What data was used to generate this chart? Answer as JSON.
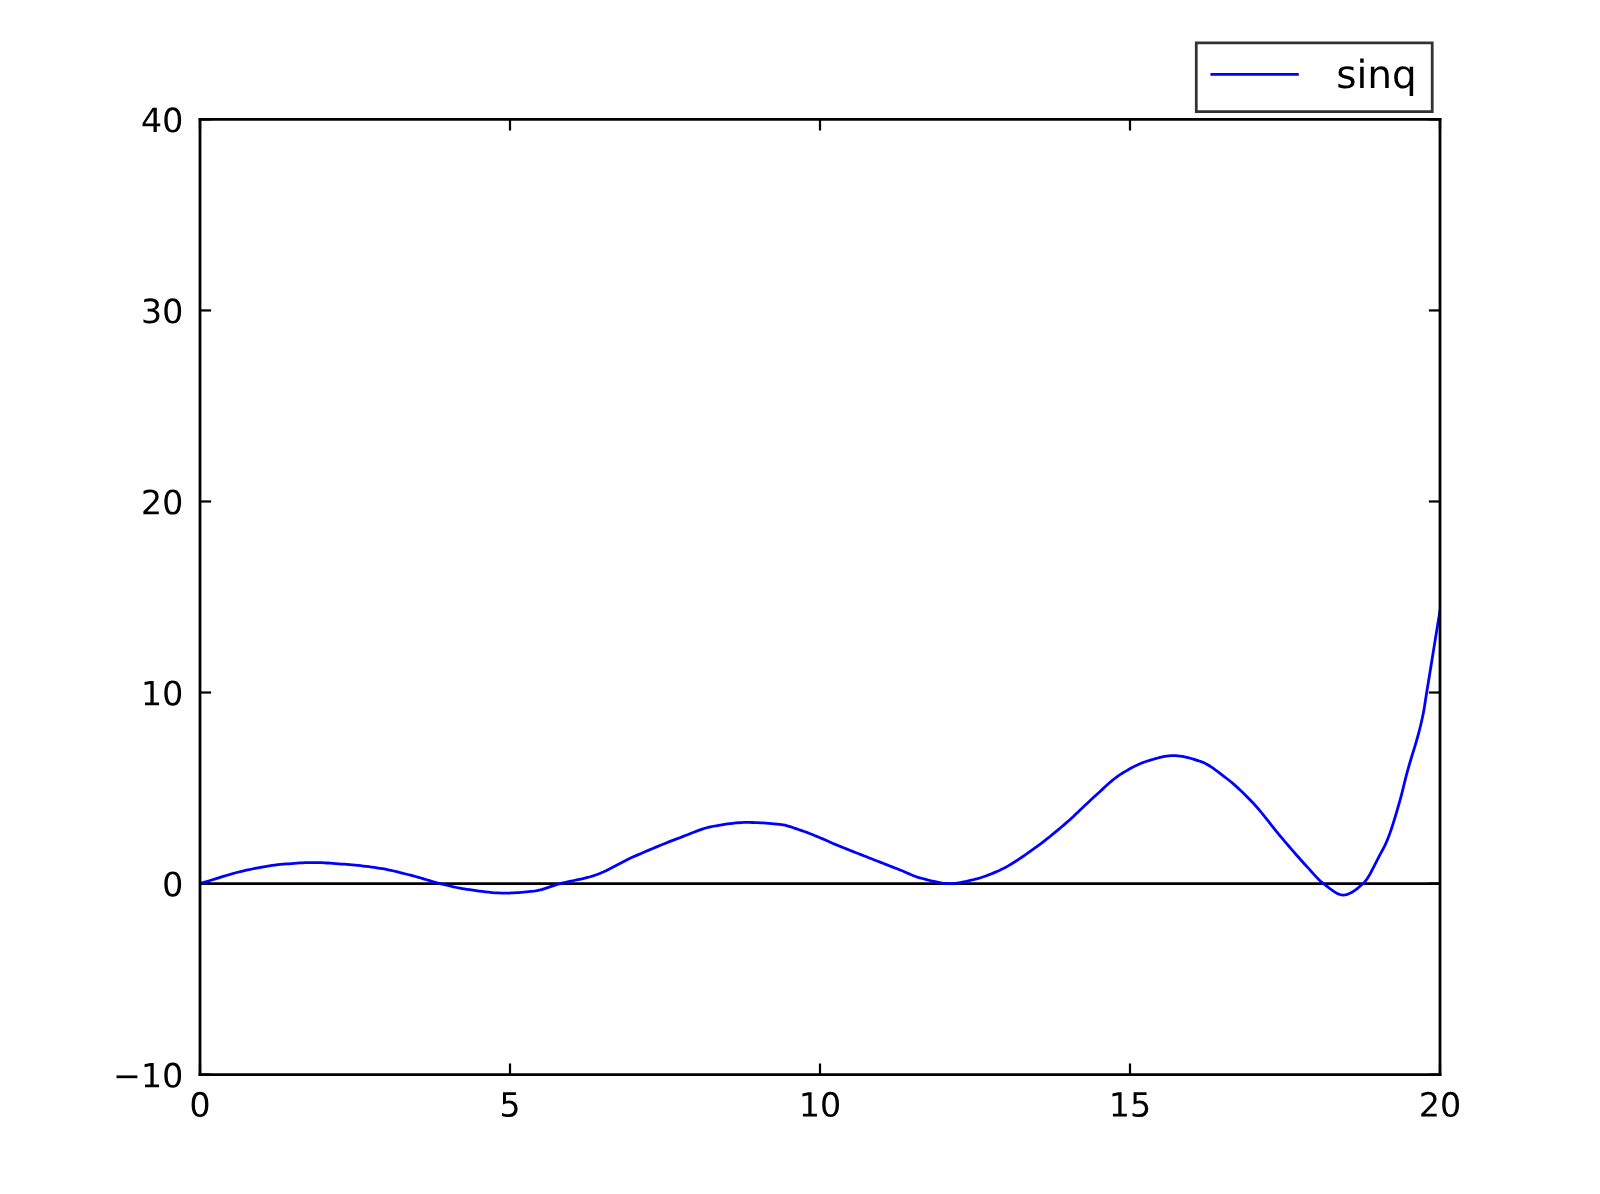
{
  "chart_data": {
    "type": "line",
    "series": [
      {
        "name": "sinq",
        "color": "#0000ff",
        "x": [
          0,
          0.75,
          1.3,
          1.83,
          2.37,
          2.9,
          3.44,
          3.87,
          4.3,
          4.91,
          5.38,
          5.81,
          6.34,
          6.99,
          7.74,
          8.28,
          8.82,
          9.35,
          9.68,
          10.0,
          10.21,
          10.75,
          11.3,
          11.61,
          12.1,
          12.47,
          12.9,
          13.44,
          13.98,
          14.41,
          14.84,
          15.27,
          15.7,
          16.13,
          16.56,
          16.99,
          17.42,
          17.85,
          18.12,
          18.44,
          18.76,
          19.03,
          19.14,
          19.35,
          19.46,
          19.73,
          19.78,
          20
        ],
        "values": [
          0,
          0.7,
          1.0,
          1.1,
          1.0,
          0.8,
          0.4,
          0,
          -0.3,
          -0.5,
          -0.4,
          0,
          0.4,
          1.4,
          2.4,
          3.0,
          3.2,
          3.1,
          2.8,
          2.4,
          2.1,
          1.4,
          0.7,
          0.3,
          0,
          0.2,
          0.7,
          1.8,
          3.2,
          4.5,
          5.7,
          6.4,
          6.7,
          6.4,
          5.5,
          4.2,
          2.5,
          0.9,
          0,
          -0.6,
          0,
          1.5,
          2.2,
          4.3,
          5.7,
          8.9,
          9.9,
          14.3
        ]
      }
    ],
    "xlim": [
      0,
      20
    ],
    "ylim": [
      -10,
      40
    ],
    "xticks": [
      0,
      5,
      10,
      15,
      20
    ],
    "yticks": [
      {
        "value": -10,
        "label": "−10"
      },
      0,
      10,
      20,
      30,
      40
    ],
    "ref_lines": [
      {
        "axis": "y",
        "value": 0,
        "color": "#000000"
      }
    ],
    "legend": "top right",
    "grid": false,
    "marker": "none",
    "line_style": "solid"
  }
}
